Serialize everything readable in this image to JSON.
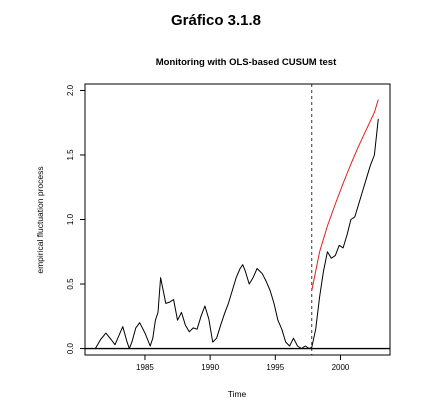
{
  "page_title": "Gráfico 3.1.8",
  "chart_data": {
    "type": "line",
    "title": "Monitoring with OLS-based CUSUM test",
    "xlabel": "Time",
    "ylabel": "empirical fluctuation process",
    "xlim": [
      1980.4,
      2003.8
    ],
    "ylim": [
      -0.05,
      2.05
    ],
    "x_ticks": [
      1985,
      1990,
      1995,
      2000
    ],
    "y_ticks": [
      0.0,
      0.5,
      1.0,
      1.5,
      2.0
    ],
    "x_tick_labels": [
      "1985",
      "1990",
      "1995",
      "2000"
    ],
    "y_tick_labels": [
      "0.0",
      "0.5",
      "1.0",
      "1.5",
      "2.0"
    ],
    "vline": {
      "x": 1997.8,
      "style": "dashed"
    },
    "hline": {
      "y": 0.0
    },
    "series": [
      {
        "color": "#000000",
        "x": [
          1981.2,
          1981.6,
          1982.0,
          1982.4,
          1982.7,
          1983.0,
          1983.3,
          1983.6,
          1983.8,
          1984.0,
          1984.3,
          1984.6,
          1985.0,
          1985.4,
          1985.6,
          1985.8,
          1986.0,
          1986.2,
          1986.4,
          1986.6,
          1986.9,
          1987.2,
          1987.5,
          1987.8,
          1988.1,
          1988.4,
          1988.7,
          1989.0,
          1989.3,
          1989.6,
          1989.9,
          1990.2,
          1990.5,
          1990.8,
          1991.1,
          1991.4,
          1991.7,
          1992.0,
          1992.3,
          1992.5,
          1992.7,
          1993.0,
          1993.3,
          1993.6,
          1993.8,
          1994.0,
          1994.3,
          1994.6,
          1994.9,
          1995.2,
          1995.5,
          1995.8,
          1996.1,
          1996.4,
          1996.7,
          1997.0,
          1997.3,
          1997.6,
          1997.8,
          1998.1,
          1998.4,
          1998.7,
          1999.0,
          1999.3,
          1999.6,
          1999.9,
          2000.2,
          2000.5,
          2000.8,
          2001.1,
          2001.4,
          2001.7,
          2002.0,
          2002.3,
          2002.6,
          2002.9
        ],
        "y": [
          0.0,
          0.07,
          0.12,
          0.07,
          0.03,
          0.1,
          0.17,
          0.06,
          0.0,
          0.05,
          0.16,
          0.2,
          0.12,
          0.02,
          0.08,
          0.22,
          0.28,
          0.55,
          0.45,
          0.35,
          0.36,
          0.38,
          0.22,
          0.28,
          0.18,
          0.13,
          0.16,
          0.15,
          0.25,
          0.33,
          0.23,
          0.05,
          0.08,
          0.18,
          0.27,
          0.35,
          0.45,
          0.55,
          0.62,
          0.65,
          0.6,
          0.5,
          0.55,
          0.62,
          0.6,
          0.58,
          0.52,
          0.45,
          0.35,
          0.22,
          0.15,
          0.05,
          0.02,
          0.08,
          0.02,
          0.0,
          0.02,
          0.0,
          0.01,
          0.15,
          0.4,
          0.6,
          0.75,
          0.7,
          0.72,
          0.8,
          0.78,
          0.88,
          1.0,
          1.02,
          1.12,
          1.22,
          1.32,
          1.42,
          1.5,
          1.78
        ]
      },
      {
        "color": "#e02020",
        "x": [
          1997.8,
          1998.4,
          1999.0,
          1999.6,
          2000.2,
          2000.8,
          2001.4,
          2002.0,
          2002.6,
          2002.9
        ],
        "y": [
          0.45,
          0.75,
          0.95,
          1.12,
          1.28,
          1.43,
          1.57,
          1.7,
          1.83,
          1.93
        ]
      }
    ]
  }
}
